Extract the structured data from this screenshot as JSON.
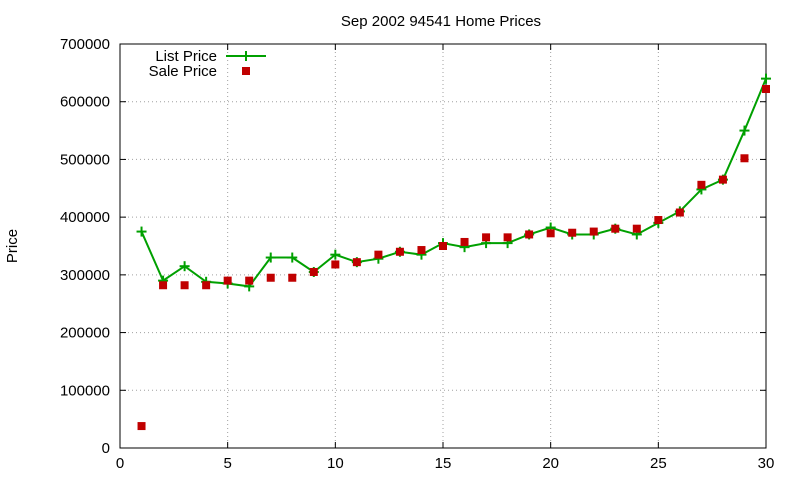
{
  "chart_data": {
    "type": "line",
    "title": "Sep 2002 94541 Home Prices",
    "xlabel": "",
    "ylabel": "Price",
    "xlim": [
      0,
      30
    ],
    "ylim": [
      0,
      700000
    ],
    "xticks": [
      0,
      5,
      10,
      15,
      20,
      25,
      30
    ],
    "yticks": [
      0,
      100000,
      200000,
      300000,
      400000,
      500000,
      600000,
      700000
    ],
    "grid": true,
    "legend_position": "top-left",
    "series": [
      {
        "name": "List Price",
        "style": "line+cross",
        "color": "#00a000",
        "x": [
          1,
          2,
          3,
          4,
          5,
          6,
          7,
          8,
          9,
          10,
          11,
          12,
          13,
          14,
          15,
          16,
          17,
          18,
          19,
          20,
          21,
          22,
          23,
          24,
          25,
          26,
          27,
          28,
          29,
          30
        ],
        "values": [
          375000,
          290000,
          315000,
          288000,
          285000,
          280000,
          330000,
          330000,
          305000,
          335000,
          322000,
          328000,
          340000,
          335000,
          355000,
          348000,
          355000,
          355000,
          370000,
          382000,
          370000,
          370000,
          380000,
          370000,
          390000,
          410000,
          448000,
          465000,
          550000,
          640000
        ]
      },
      {
        "name": "Sale Price",
        "style": "square",
        "color": "#c00000",
        "x": [
          1,
          2,
          3,
          4,
          5,
          6,
          7,
          8,
          9,
          10,
          11,
          12,
          13,
          14,
          15,
          16,
          17,
          18,
          19,
          20,
          21,
          22,
          23,
          24,
          25,
          26,
          27,
          28,
          29,
          30
        ],
        "values": [
          38000,
          282000,
          282000,
          282000,
          290000,
          290000,
          295000,
          295000,
          305000,
          318000,
          322000,
          335000,
          340000,
          343000,
          350000,
          357000,
          365000,
          365000,
          370000,
          372000,
          373000,
          375000,
          380000,
          380000,
          395000,
          408000,
          456000,
          465000,
          502000,
          622000
        ]
      }
    ]
  }
}
